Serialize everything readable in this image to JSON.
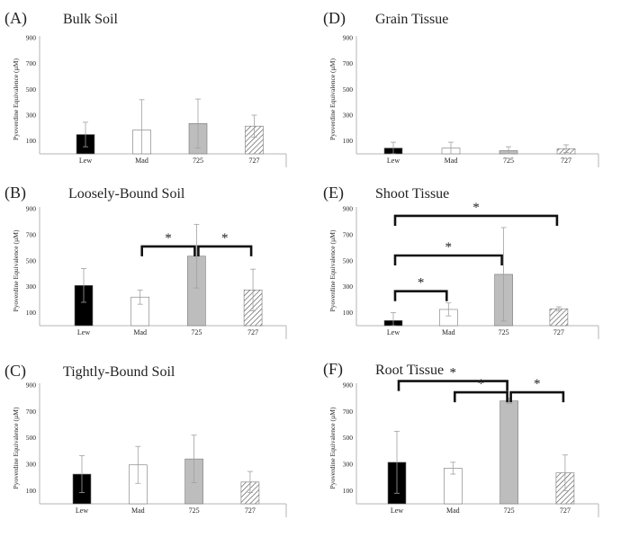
{
  "figure": {
    "bar_colors": {
      "Lew": "#000000",
      "Mad": "#ffffff",
      "725": "#bdbdbd",
      "727": "hatch"
    }
  },
  "chart_data": [
    {
      "type": "bar",
      "id": "A",
      "letter": "(A)",
      "title": "Bulk Soil",
      "ylabel": "Pyoverdine Equivalence (µM)",
      "ylim": [
        0,
        900
      ],
      "yticks": [
        100,
        300,
        500,
        700,
        900
      ],
      "categories": [
        "Lew",
        "Mad",
        "725",
        "727"
      ],
      "values": [
        150,
        185,
        235,
        215
      ],
      "errors": [
        95,
        235,
        190,
        85
      ],
      "significance": []
    },
    {
      "type": "bar",
      "id": "D",
      "letter": "(D)",
      "title": "Grain Tissue",
      "ylabel": "Pyoverdine Equivalence (µM)",
      "ylim": [
        0,
        900
      ],
      "yticks": [
        100,
        300,
        500,
        700,
        900
      ],
      "categories": [
        "Lew",
        "Mad",
        "725",
        "727"
      ],
      "values": [
        45,
        45,
        25,
        40
      ],
      "errors": [
        45,
        45,
        30,
        30
      ],
      "significance": []
    },
    {
      "type": "bar",
      "id": "B",
      "letter": "(B)",
      "title": "Loosely-Bound Soil",
      "ylabel": "Pyoverdine Equivalence (µM)",
      "ylim": [
        0,
        900
      ],
      "yticks": [
        100,
        300,
        500,
        700,
        900
      ],
      "categories": [
        "Lew",
        "Mad",
        "725",
        "727"
      ],
      "values": [
        310,
        220,
        535,
        275
      ],
      "errors": [
        130,
        55,
        245,
        160
      ],
      "significance": [
        {
          "from": 1,
          "to": 2,
          "level": 610,
          "label": "*"
        },
        {
          "from": 2,
          "to": 3,
          "level": 610,
          "label": "*"
        }
      ]
    },
    {
      "type": "bar",
      "id": "E",
      "letter": "(E)",
      "title": "Shoot Tissue",
      "ylabel": "Pyoverdine Equivalence (µM)",
      "ylim": [
        0,
        900
      ],
      "yticks": [
        100,
        300,
        500,
        700,
        900
      ],
      "categories": [
        "Lew",
        "Mad",
        "725",
        "727"
      ],
      "values": [
        40,
        125,
        395,
        130
      ],
      "errors": [
        60,
        50,
        360,
        15
      ],
      "significance": [
        {
          "from": 0,
          "to": 1,
          "level": 265,
          "label": "*"
        },
        {
          "from": 0,
          "to": 2,
          "level": 540,
          "label": "*"
        },
        {
          "from": 0,
          "to": 3,
          "level": 845,
          "label": "*"
        }
      ]
    },
    {
      "type": "bar",
      "id": "C",
      "letter": "(C)",
      "title": "Tightly-Bound Soil",
      "ylabel": "Pyoverdine Equivalence (µM)",
      "ylim": [
        0,
        900
      ],
      "yticks": [
        100,
        300,
        500,
        700,
        900
      ],
      "categories": [
        "Lew",
        "Mad",
        "725",
        "727"
      ],
      "values": [
        225,
        295,
        340,
        165
      ],
      "errors": [
        140,
        140,
        180,
        80
      ],
      "significance": []
    },
    {
      "type": "bar",
      "id": "F",
      "letter": "(F)",
      "title": "Root Tissue",
      "ylabel": "Pyoverdine Equivalence (µM)",
      "ylim": [
        0,
        900
      ],
      "yticks": [
        100,
        300,
        500,
        700,
        900
      ],
      "categories": [
        "Lew",
        "Mad",
        "725",
        "727"
      ],
      "values": [
        315,
        270,
        780,
        235
      ],
      "errors": [
        235,
        45,
        20,
        135
      ],
      "significance": [
        {
          "from": 0,
          "to": 2,
          "level": 930,
          "label": "*"
        },
        {
          "from": 1,
          "to": 2,
          "level": 845,
          "label": "*"
        },
        {
          "from": 2,
          "to": 3,
          "level": 845,
          "label": "*"
        }
      ]
    }
  ]
}
